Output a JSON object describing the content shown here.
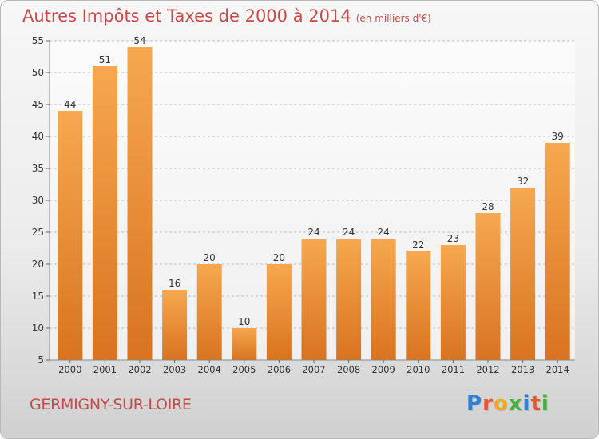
{
  "header": {
    "title": "Autres Impôts et Taxes de 2000 à 2014",
    "unit": "(en milliers d'€)"
  },
  "location": "GERMIGNY-SUR-LOIRE",
  "logo": {
    "text": "Proxiti",
    "letter_colors": [
      "#2f7fd6",
      "#e8552f",
      "#f2a81d",
      "#47b040",
      "#2f7fd6",
      "#e8552f",
      "#47b040"
    ]
  },
  "colors": {
    "bar_top": "#f6a84f",
    "bar_bottom": "#d9731f",
    "axis_text": "#333333",
    "grid": "#bdbdbd"
  },
  "chart_data": {
    "type": "bar",
    "title": "Autres Impôts et Taxes de 2000 à 2014",
    "subtitle": "(en milliers d'€)",
    "xlabel": "",
    "ylabel": "",
    "categories": [
      "2000",
      "2001",
      "2002",
      "2003",
      "2004",
      "2005",
      "2006",
      "2007",
      "2008",
      "2009",
      "2010",
      "2011",
      "2012",
      "2013",
      "2014"
    ],
    "values": [
      44,
      51,
      54,
      16,
      20,
      10,
      20,
      24,
      24,
      24,
      22,
      23,
      28,
      32,
      39
    ],
    "ylim": [
      5,
      55
    ],
    "yticks": [
      5,
      10,
      15,
      20,
      25,
      30,
      35,
      40,
      45,
      50,
      55
    ],
    "grid": true
  }
}
